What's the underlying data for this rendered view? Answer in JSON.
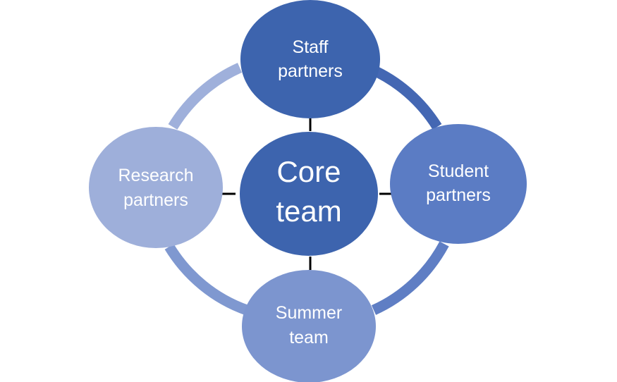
{
  "diagram": {
    "center": {
      "label_line1": "Core",
      "label_line2": "team",
      "color": "#3d64ae"
    },
    "nodes": {
      "staff": {
        "label_line1": "Staff",
        "label_line2": "partners",
        "color": "#3d64ae"
      },
      "student": {
        "label_line1": "Student",
        "label_line2": "partners",
        "color": "#5b7cc4"
      },
      "summer": {
        "label_line1": "Summer",
        "label_line2": "team",
        "color": "#7c95cf"
      },
      "research": {
        "label_line1": "Research",
        "label_line2": "partners",
        "color": "#9eafda"
      }
    },
    "ring_colors": {
      "staff_student": "#4467b3",
      "student_summer": "#5f7ec4",
      "summer_research": "#7f98d0",
      "research_staff": "#9fb0db"
    },
    "connector_color": "#000000"
  }
}
